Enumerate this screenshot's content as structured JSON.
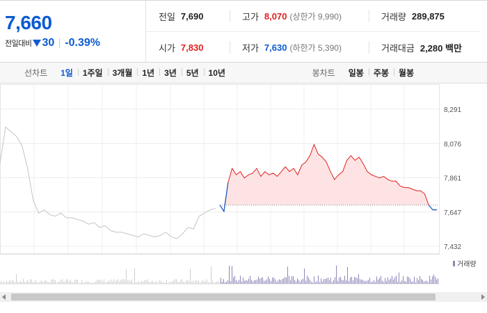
{
  "summary": {
    "price": "7,660",
    "change_label": "전일대비",
    "change": "30",
    "change_rate": "-0.39%"
  },
  "info": {
    "prev_close_label": "전일",
    "prev_close": "7,690",
    "high_label": "고가",
    "high": "8,070",
    "upper_limit": "(상한가 9,990)",
    "volume_label": "거래량",
    "volume": "289,875",
    "open_label": "시가",
    "open": "7,830",
    "low_label": "저가",
    "low": "7,630",
    "lower_limit": "(하한가 5,390)",
    "amount_label": "거래대금",
    "amount": "2,280 백만"
  },
  "period_bar": {
    "line_label": "선차트",
    "line_items": [
      "1일",
      "1주일",
      "3개월",
      "1년",
      "3년",
      "5년",
      "10년"
    ],
    "selected": "1일",
    "candle_label": "봉차트",
    "candle_items": [
      "일봉",
      "주봉",
      "월봉"
    ]
  },
  "colors": {
    "up": "#e02020",
    "down": "#0d5bd1",
    "prev_day": "#c4c4c4",
    "volume": "#8f82b8"
  },
  "chart_data": {
    "type": "line",
    "title": "",
    "ylim": [
      7432,
      8291
    ],
    "y_ticks": [
      "8,291",
      "8,076",
      "7,861",
      "7,647",
      "7,432"
    ],
    "reference_price": 7690,
    "volume_legend": "거래량",
    "series": [
      {
        "name": "",
        "values": [
          7950,
          8180,
          8150,
          8120,
          8060,
          7920,
          7720,
          7640,
          7660,
          7630,
          7620,
          7640,
          7610,
          7610,
          7600,
          7590,
          7570,
          7580,
          7550,
          7560,
          7530,
          7520,
          7520,
          7510,
          7500,
          7490,
          7510,
          7500,
          7490,
          7500,
          7520,
          7490,
          7480,
          7510,
          7550,
          7540,
          7620,
          7640,
          7660,
          7670
        ]
      },
      {
        "name": "",
        "values": [
          7690,
          7650,
          7830,
          7920,
          7880,
          7900,
          7860,
          7880,
          7890,
          7920,
          7870,
          7900,
          7880,
          7890,
          7870,
          7900,
          7930,
          7900,
          7920,
          7880,
          7940,
          7960,
          8000,
          8070,
          8010,
          7990,
          7960,
          7900,
          7850,
          7880,
          7900,
          7970,
          8000,
          7970,
          7990,
          7950,
          7900,
          7880,
          7870,
          7860,
          7870,
          7850,
          7840,
          7840,
          7810,
          7800,
          7800,
          7790,
          7780,
          7780,
          7760,
          7690,
          7660,
          7660
        ]
      }
    ]
  }
}
